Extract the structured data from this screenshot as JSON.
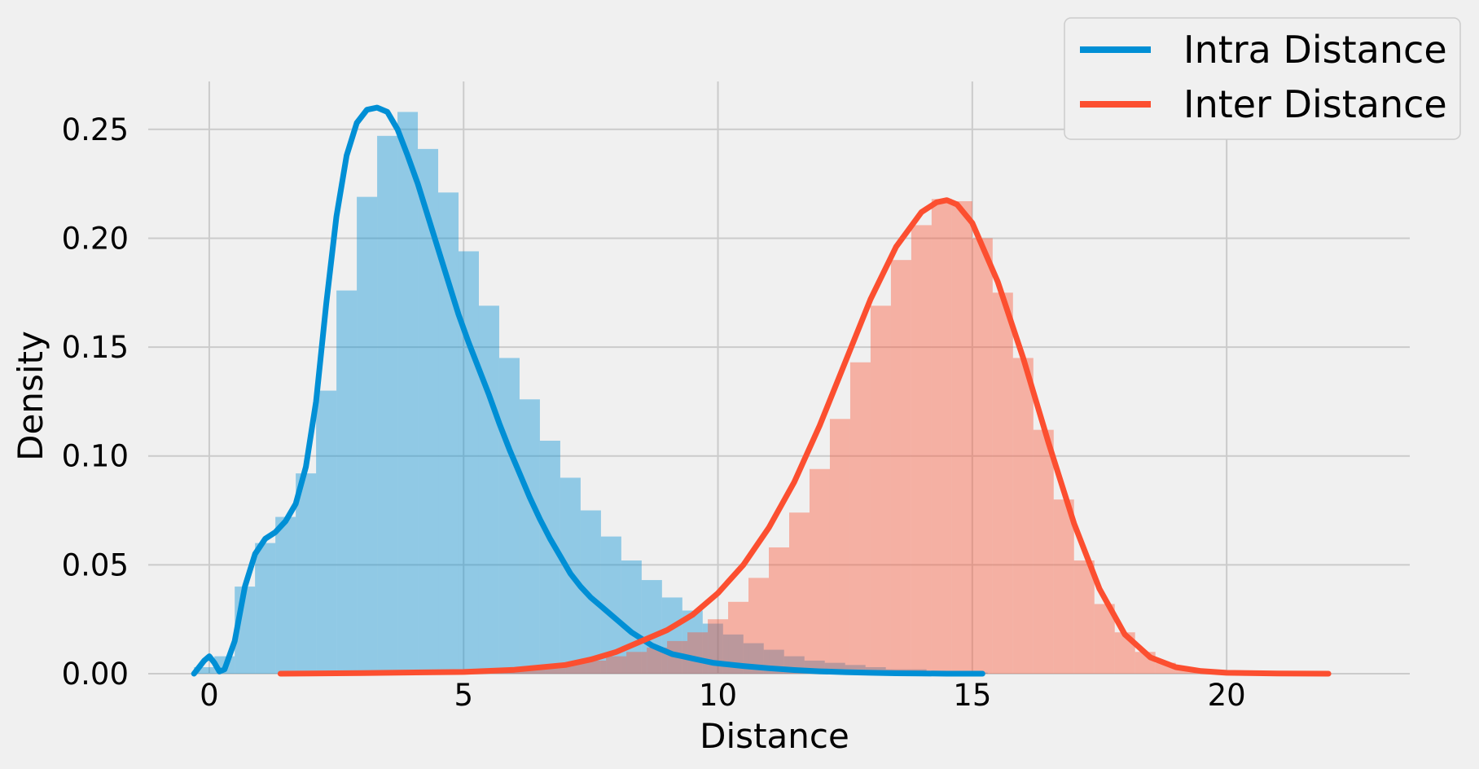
{
  "chart_data": {
    "type": "area",
    "xlabel": "Distance",
    "ylabel": "Density",
    "xlim": [
      -1.2,
      23.6
    ],
    "ylim": [
      0,
      0.272
    ],
    "x_ticks": [
      0,
      5,
      10,
      15,
      20
    ],
    "x_tick_labels": [
      "0",
      "5",
      "10",
      "15",
      "20"
    ],
    "y_ticks": [
      0,
      0.05,
      0.1,
      0.15,
      0.2,
      0.25
    ],
    "y_tick_labels": [
      "0.00",
      "0.05",
      "0.10",
      "0.15",
      "0.20",
      "0.25"
    ],
    "grid": true,
    "legend_position": "top-right",
    "series": [
      {
        "name": "Intra Distance",
        "color": "#008fd5",
        "histogram": {
          "bin_width": 0.4,
          "bin_starts": [
            -0.3,
            0.1,
            0.5,
            0.9,
            1.3,
            1.7,
            2.1,
            2.5,
            2.9,
            3.3,
            3.7,
            4.1,
            4.5,
            4.9,
            5.3,
            5.7,
            6.1,
            6.5,
            6.9,
            7.3,
            7.7,
            8.1,
            8.5,
            8.9,
            9.3,
            9.7,
            10.1,
            10.5,
            10.9,
            11.3,
            11.7,
            12.1,
            12.5,
            12.9,
            13.3,
            13.7,
            14.1,
            14.5,
            14.9
          ],
          "densities": [
            0.003,
            0.008,
            0.04,
            0.06,
            0.072,
            0.092,
            0.13,
            0.176,
            0.219,
            0.247,
            0.258,
            0.241,
            0.221,
            0.194,
            0.169,
            0.145,
            0.126,
            0.107,
            0.09,
            0.075,
            0.063,
            0.052,
            0.043,
            0.035,
            0.029,
            0.023,
            0.018,
            0.014,
            0.011,
            0.008,
            0.006,
            0.005,
            0.004,
            0.003,
            0.002,
            0.002,
            0.001,
            0.001,
            0.0005
          ]
        },
        "kde": {
          "x": [
            -0.3,
            -0.1,
            0.0,
            0.1,
            0.2,
            0.3,
            0.5,
            0.7,
            0.9,
            1.1,
            1.3,
            1.5,
            1.7,
            1.9,
            2.1,
            2.3,
            2.5,
            2.7,
            2.9,
            3.1,
            3.3,
            3.5,
            3.7,
            3.9,
            4.1,
            4.3,
            4.5,
            4.7,
            4.9,
            5.1,
            5.3,
            5.5,
            5.7,
            5.9,
            6.1,
            6.3,
            6.5,
            6.7,
            6.9,
            7.1,
            7.3,
            7.5,
            7.7,
            7.9,
            8.1,
            8.3,
            8.5,
            8.7,
            8.9,
            9.1,
            9.3,
            9.5,
            9.7,
            9.9,
            10.1,
            10.5,
            11.0,
            11.5,
            12.0,
            12.5,
            13.0,
            13.5,
            14.0,
            14.5,
            15.2
          ],
          "y": [
            0.0,
            0.006,
            0.008,
            0.005,
            0.001,
            0.002,
            0.015,
            0.04,
            0.055,
            0.062,
            0.065,
            0.07,
            0.078,
            0.095,
            0.125,
            0.17,
            0.21,
            0.238,
            0.253,
            0.259,
            0.26,
            0.258,
            0.25,
            0.238,
            0.225,
            0.21,
            0.195,
            0.18,
            0.165,
            0.152,
            0.14,
            0.128,
            0.115,
            0.103,
            0.092,
            0.081,
            0.071,
            0.062,
            0.054,
            0.046,
            0.04,
            0.035,
            0.031,
            0.027,
            0.023,
            0.019,
            0.016,
            0.013,
            0.011,
            0.009,
            0.008,
            0.007,
            0.006,
            0.005,
            0.0045,
            0.0035,
            0.0025,
            0.0017,
            0.0011,
            0.0007,
            0.0004,
            0.0002,
            0.0001,
            0.0,
            0.0
          ]
        }
      },
      {
        "name": "Inter Distance",
        "color": "#fc4f30",
        "histogram": {
          "bin_width": 0.4,
          "bin_starts": [
            1.4,
            1.8,
            2.2,
            2.6,
            3.0,
            3.4,
            3.8,
            4.2,
            4.6,
            5.0,
            5.4,
            5.8,
            6.2,
            6.6,
            7.0,
            7.4,
            7.8,
            8.2,
            8.6,
            9.0,
            9.4,
            9.8,
            10.2,
            10.6,
            11.0,
            11.4,
            11.8,
            12.2,
            12.6,
            13.0,
            13.4,
            13.8,
            14.2,
            14.6,
            15.0,
            15.4,
            15.8,
            16.2,
            16.6,
            17.0,
            17.4,
            17.8,
            18.2,
            18.6,
            19.0,
            19.4,
            19.8,
            20.2,
            20.6,
            21.0,
            21.4,
            21.8
          ],
          "densities": [
            0.0002,
            0.0002,
            0.0003,
            0.0003,
            0.0004,
            0.0005,
            0.0006,
            0.0008,
            0.001,
            0.0013,
            0.0017,
            0.0022,
            0.003,
            0.004,
            0.005,
            0.006,
            0.008,
            0.01,
            0.012,
            0.015,
            0.019,
            0.025,
            0.033,
            0.044,
            0.058,
            0.074,
            0.094,
            0.117,
            0.143,
            0.169,
            0.19,
            0.206,
            0.218,
            0.217,
            0.2,
            0.175,
            0.145,
            0.112,
            0.08,
            0.052,
            0.032,
            0.019,
            0.01,
            0.005,
            0.0025,
            0.0012,
            0.0006,
            0.0003,
            0.0002,
            0.0001,
            0.0001,
            0.0
          ]
        },
        "kde": {
          "x": [
            1.4,
            3.0,
            5.0,
            6.0,
            7.0,
            7.5,
            8.0,
            8.5,
            9.0,
            9.5,
            10.0,
            10.5,
            11.0,
            11.5,
            12.0,
            12.5,
            13.0,
            13.5,
            14.0,
            14.3,
            14.5,
            14.7,
            15.0,
            15.5,
            16.0,
            16.5,
            17.0,
            17.5,
            18.0,
            18.5,
            19.0,
            19.5,
            20.0,
            21.0,
            22.0
          ],
          "y": [
            0.0,
            0.0003,
            0.0008,
            0.0018,
            0.004,
            0.0065,
            0.01,
            0.015,
            0.02,
            0.027,
            0.037,
            0.05,
            0.067,
            0.088,
            0.114,
            0.143,
            0.172,
            0.196,
            0.212,
            0.2165,
            0.2175,
            0.2155,
            0.207,
            0.18,
            0.145,
            0.106,
            0.069,
            0.039,
            0.018,
            0.0075,
            0.003,
            0.0012,
            0.0004,
            0.0001,
            0.0
          ]
        }
      }
    ]
  }
}
